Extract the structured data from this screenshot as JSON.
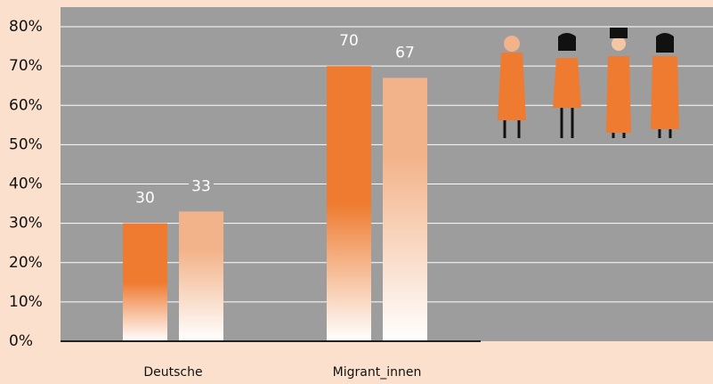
{
  "chart_data": {
    "type": "bar",
    "categories": [
      "Deutsche",
      "Migrant_innen"
    ],
    "series": [
      {
        "color": "#ee7b30",
        "values": [
          30,
          70
        ]
      },
      {
        "color": "#f3b38a",
        "values": [
          33,
          67
        ]
      }
    ],
    "ylim": [
      0,
      85
    ],
    "yticks": [
      {
        "value": 0,
        "label": "0%"
      },
      {
        "value": 10,
        "label": "10%"
      },
      {
        "value": 20,
        "label": "20%"
      },
      {
        "value": 30,
        "label": "30%"
      },
      {
        "value": 40,
        "label": "40%"
      },
      {
        "value": 50,
        "label": "50%"
      },
      {
        "value": 60,
        "label": "60%"
      },
      {
        "value": 70,
        "label": "70%"
      },
      {
        "value": 80,
        "label": "80%"
      }
    ],
    "grid": true
  }
}
